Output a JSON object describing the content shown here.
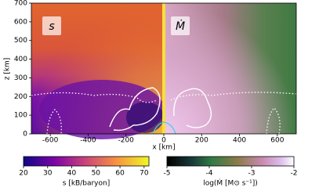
{
  "chart_data": {
    "type": "heatmap",
    "xlabel": "x [km]",
    "ylabel": "z [km]",
    "xlim": [
      -700,
      700
    ],
    "ylim": [
      0,
      700
    ],
    "xticks": [
      -600,
      -400,
      -200,
      0,
      200,
      400,
      600
    ],
    "yticks": [
      0,
      100,
      200,
      300,
      400,
      500,
      600,
      700
    ],
    "panel_labels": [
      "s",
      "Ṁ"
    ],
    "colorbars": [
      {
        "label": "s [kB/baryon]",
        "lim": [
          20,
          72
        ],
        "ticks": [
          20,
          30,
          40,
          50,
          60,
          70
        ]
      },
      {
        "label": "log(Ṁ [M⊙ s⁻¹])",
        "lim": [
          -5,
          -2
        ],
        "ticks": [
          -5,
          -4,
          -3,
          -2
        ]
      }
    ]
  }
}
